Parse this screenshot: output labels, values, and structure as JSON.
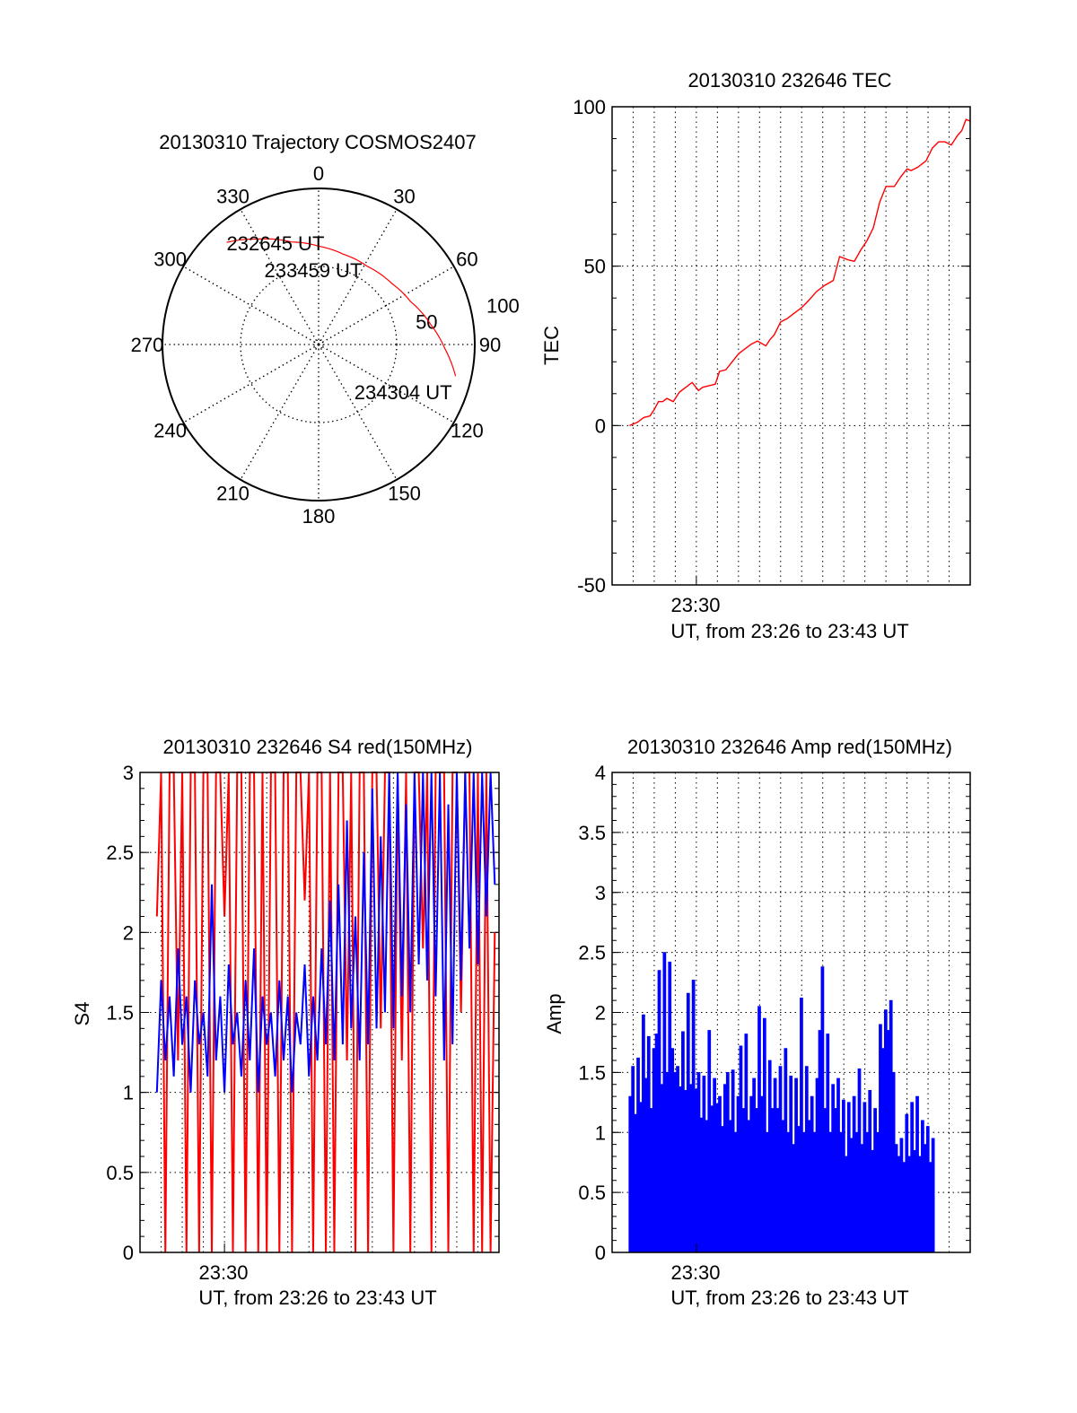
{
  "chart_data": [
    {
      "type": "polar",
      "title": "20130310 Trajectory COSMOS2407",
      "angle_labels": [
        "0",
        "30",
        "60",
        "90",
        "120",
        "150",
        "180",
        "210",
        "240",
        "270",
        "300",
        "330"
      ],
      "radial_labels": [
        "50",
        "100"
      ],
      "rlim": [
        0,
        100
      ],
      "trajectory": {
        "color": "#ff0000",
        "points_az_r": [
          [
            318,
            88
          ],
          [
            330,
            78
          ],
          [
            345,
            68
          ],
          [
            0,
            63
          ],
          [
            15,
            60
          ],
          [
            32,
            59
          ],
          [
            50,
            61
          ],
          [
            65,
            65
          ],
          [
            80,
            73
          ],
          [
            92,
            81
          ],
          [
            103,
            90
          ]
        ]
      },
      "annotations": [
        {
          "text": "232645 UT",
          "at": "start"
        },
        {
          "text": "233459 UT",
          "at": "middle"
        },
        {
          "text": "234304 UT",
          "at": "end"
        }
      ]
    },
    {
      "type": "line",
      "title": "20130310 232646 TEC",
      "xlabel": "UT, from 23:26 to 23:43 UT",
      "ylabel": "TEC",
      "xlim": [
        26,
        43
      ],
      "ylim": [
        -50,
        100
      ],
      "yticks": [
        "-50",
        "0",
        "50",
        "100"
      ],
      "xtick_label": "23:30",
      "grid": true,
      "series": [
        {
          "name": "TEC",
          "color": "#ff0000",
          "x": [
            26.83,
            27.0,
            27.2,
            27.5,
            27.8,
            28.0,
            28.2,
            28.4,
            28.6,
            28.9,
            29.2,
            29.5,
            29.8,
            30.1,
            30.3,
            30.6,
            30.9,
            31.1,
            31.4,
            31.7,
            32.0,
            32.2,
            32.6,
            32.9,
            33.3,
            33.5,
            33.7,
            34.0,
            34.3,
            34.6,
            35.0,
            35.3,
            35.7,
            36.1,
            36.5,
            36.8,
            37.2,
            37.5,
            37.8,
            38.1,
            38.4,
            38.7,
            39.0,
            39.4,
            39.7,
            40.0,
            40.2,
            40.5,
            40.9,
            41.2,
            41.5,
            41.8,
            42.1,
            42.4,
            42.6,
            42.8,
            43.0
          ],
          "y": [
            0,
            0.5,
            1,
            2.5,
            3,
            5,
            7.5,
            7.5,
            8.5,
            7.5,
            10.5,
            12,
            13.5,
            11,
            12,
            12.5,
            13,
            17,
            17.5,
            20,
            22.5,
            23.5,
            25.5,
            26.5,
            25,
            27,
            28.5,
            32.5,
            33.5,
            35,
            37,
            39,
            42,
            44,
            45.5,
            53,
            52,
            51.5,
            55,
            58,
            62,
            70,
            75,
            75,
            78,
            80.5,
            80,
            81,
            83,
            87,
            89,
            89,
            88,
            91,
            92.5,
            96,
            95.5
          ]
        }
      ]
    },
    {
      "type": "line",
      "title": "20130310 232646 S4 red(150MHz)",
      "xlabel": "UT, from 23:26 to 23:43 UT",
      "ylabel": "S4",
      "xlim": [
        26,
        43
      ],
      "ylim": [
        0,
        3
      ],
      "yticks": [
        "0",
        "0.5",
        "1",
        "1.5",
        "2",
        "2.5",
        "3"
      ],
      "xtick_label": "23:30",
      "grid": true,
      "x_start": 26.8,
      "x_step": 0.2,
      "series": [
        {
          "name": "S4 red",
          "color": "#ff0000",
          "y": [
            2.1,
            3,
            0,
            3,
            3,
            1.2,
            3,
            0,
            3,
            3,
            0,
            3,
            3,
            0,
            3,
            3,
            2.1,
            3,
            0,
            3,
            3,
            0,
            3,
            3,
            0,
            3,
            0,
            3,
            3,
            0,
            3,
            3,
            0,
            3,
            3,
            2.2,
            3,
            0,
            3,
            3,
            0,
            3,
            0,
            3,
            3,
            1.2,
            3,
            0,
            3,
            3,
            0,
            3,
            3,
            1.4,
            3,
            3,
            0,
            3,
            1.2,
            3,
            0,
            3,
            3,
            1.9,
            3,
            0,
            3,
            3,
            3,
            0,
            3,
            3,
            1.5,
            3,
            3,
            0,
            3,
            0,
            3,
            0,
            2.0
          ]
        },
        {
          "name": "S4 blue",
          "color": "#0000ff",
          "y": [
            1.0,
            1.7,
            1.2,
            1.6,
            1.1,
            1.9,
            1.3,
            1.6,
            1.0,
            1.7,
            1.3,
            1.5,
            1.1,
            2.3,
            1.2,
            1.6,
            1.0,
            1.8,
            1.3,
            1.5,
            1.1,
            1.7,
            1.2,
            1.9,
            1.0,
            1.6,
            1.3,
            1.5,
            1.1,
            1.7,
            1.2,
            1.6,
            1.0,
            1.5,
            1.3,
            1.8,
            1.1,
            1.6,
            1.2,
            1.9,
            1.3,
            2.2,
            1.2,
            2.3,
            1.3,
            2.7,
            1.4,
            2.1,
            1.2,
            2.5,
            1.3,
            2.9,
            1.4,
            2.6,
            1.5,
            3.0,
            1.4,
            3.0,
            1.6,
            2.8,
            1.5,
            3.0,
            1.8,
            3.0,
            1.7,
            3.0,
            1.6,
            3.0,
            1.2,
            2.8,
            1.3,
            3.0,
            1.7,
            3.0,
            1.9,
            3.0,
            1.8,
            3.0,
            2.1,
            3.0,
            2.3
          ]
        }
      ]
    },
    {
      "type": "area",
      "title": "20130310 232646 Amp red(150MHz)",
      "xlabel": "UT, from 23:26 to 23:43 UT",
      "ylabel": "Amp",
      "xlim": [
        26,
        43
      ],
      "ylim": [
        0,
        4
      ],
      "yticks": [
        "0",
        "0.5",
        "1",
        "1.5",
        "2",
        "2.5",
        "3",
        "3.5",
        "4"
      ],
      "xtick_label": "23:30",
      "grid": true,
      "x_start": 26.8,
      "x_step": 0.125,
      "series": [
        {
          "name": "Amp",
          "color": "#0000ff",
          "y": [
            1.3,
            1.55,
            1.15,
            1.62,
            1.25,
            1.98,
            1.45,
            1.8,
            1.2,
            1.7,
            1.82,
            2.35,
            1.4,
            2.5,
            1.5,
            2.42,
            1.7,
            1.5,
            1.55,
            1.38,
            1.84,
            1.35,
            2.16,
            1.4,
            2.27,
            1.36,
            1.5,
            1.12,
            1.47,
            1.1,
            1.85,
            1.22,
            1.45,
            1.24,
            1.3,
            1.05,
            1.4,
            1.5,
            1.1,
            1.52,
            1.0,
            1.3,
            1.72,
            1.2,
            1.82,
            1.1,
            1.3,
            1.45,
            1.2,
            2.05,
            1.3,
            1.95,
            1.0,
            1.6,
            1.2,
            1.45,
            1.2,
            1.55,
            1.1,
            1.7,
            1.0,
            1.47,
            0.9,
            1.45,
            1.05,
            2.12,
            1.0,
            1.55,
            1.1,
            1.3,
            1.0,
            1.45,
            1.85,
            2.38,
            1.2,
            1.82,
            1.0,
            1.4,
            1.2,
            1.45,
            1.0,
            1.27,
            0.8,
            1.25,
            0.95,
            1.3,
            1.0,
            1.53,
            0.9,
            1.25,
            1.0,
            1.35,
            0.85,
            1.2,
            1.0,
            1.9,
            1.7,
            2.02,
            1.85,
            2.1,
            1.5,
            0.9,
            0.8,
            0.95,
            0.75,
            1.15,
            0.8,
            1.25,
            0.85,
            1.3,
            0.8,
            1.1,
            0.9,
            1.05,
            0.75,
            0.95
          ]
        }
      ]
    }
  ]
}
